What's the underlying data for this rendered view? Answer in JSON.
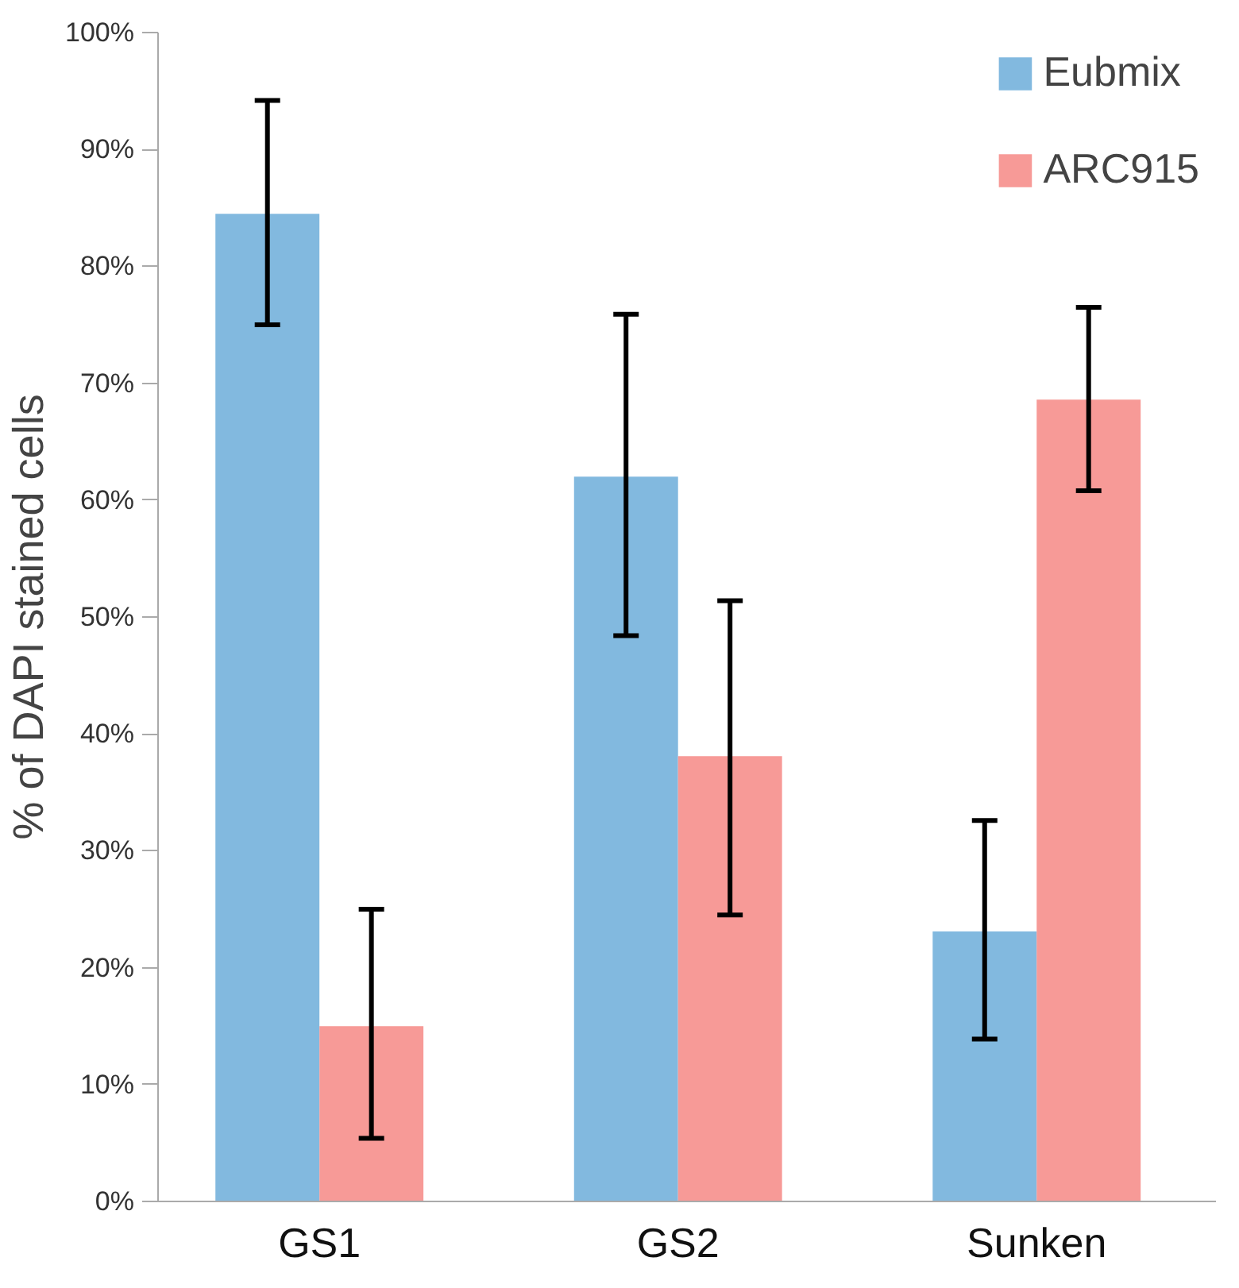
{
  "chart_data": {
    "type": "bar",
    "ylabel": "% of DAPI stained cells",
    "categories": [
      "GS1",
      "GS2",
      "Sunken"
    ],
    "series": [
      {
        "name": "Eubmix",
        "color": "#82b9df",
        "values": [
          84.5,
          62.0,
          23.1
        ],
        "errors": [
          [
            75.0,
            94.2
          ],
          [
            48.4,
            75.9
          ],
          [
            13.9,
            32.6
          ]
        ]
      },
      {
        "name": "ARC915",
        "color": "#f79a97",
        "values": [
          15.0,
          38.1,
          68.6
        ],
        "errors": [
          [
            5.4,
            25.0
          ],
          [
            24.5,
            51.4
          ],
          [
            60.8,
            76.5
          ]
        ]
      }
    ],
    "ylim": [
      0,
      100
    ],
    "yticks": [
      {
        "value": 0,
        "label": "0%"
      },
      {
        "value": 10,
        "label": "10%"
      },
      {
        "value": 20,
        "label": "20%"
      },
      {
        "value": 30,
        "label": "30%"
      },
      {
        "value": 40,
        "label": "40%"
      },
      {
        "value": 50,
        "label": "50%"
      },
      {
        "value": 60,
        "label": "60%"
      },
      {
        "value": 70,
        "label": "70%"
      },
      {
        "value": 80,
        "label": "80%"
      },
      {
        "value": 90,
        "label": "90%"
      },
      {
        "value": 100,
        "label": "100%"
      }
    ],
    "grid": false,
    "legend": "top right"
  }
}
